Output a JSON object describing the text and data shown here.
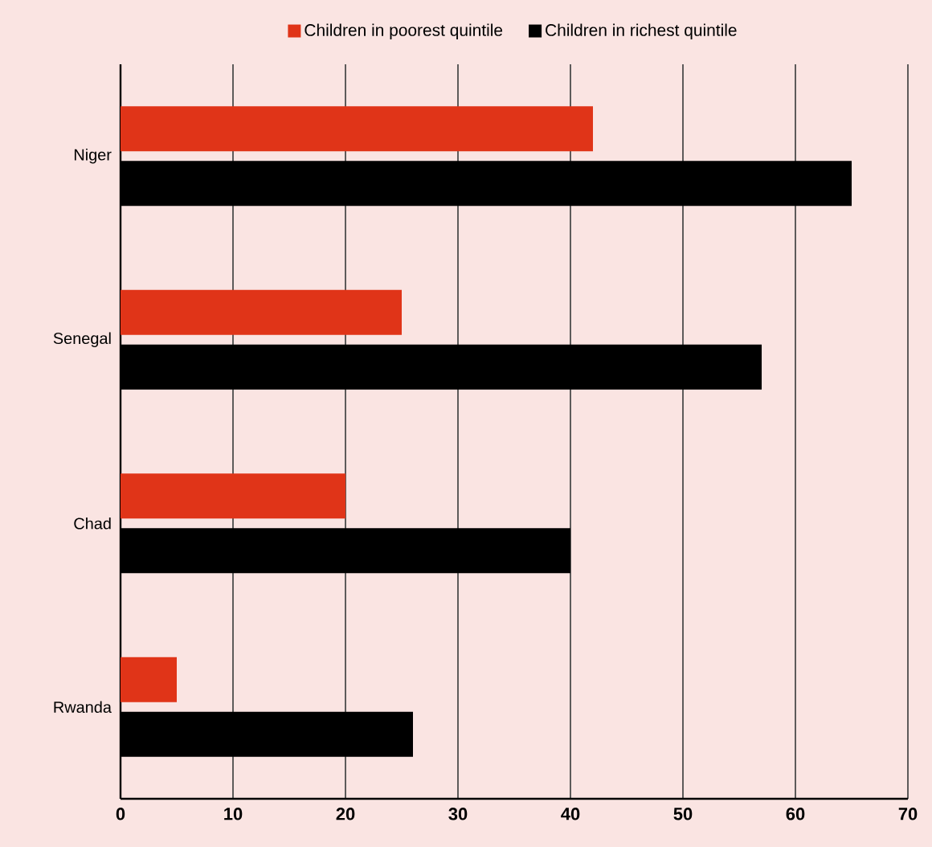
{
  "chart_data": {
    "type": "bar",
    "orientation": "horizontal",
    "categories": [
      "Niger",
      "Senegal",
      "Chad",
      "Rwanda"
    ],
    "series": [
      {
        "name": "Children in poorest quintile",
        "color": "#e03418",
        "values": [
          42,
          25,
          20,
          5
        ]
      },
      {
        "name": "Children in richest quintile",
        "color": "#000000",
        "values": [
          65,
          57,
          40,
          26
        ]
      }
    ],
    "xlim": [
      0,
      70
    ],
    "xticks": [
      0,
      10,
      20,
      30,
      40,
      50,
      60,
      70
    ],
    "grid": "x",
    "legend": "top"
  }
}
